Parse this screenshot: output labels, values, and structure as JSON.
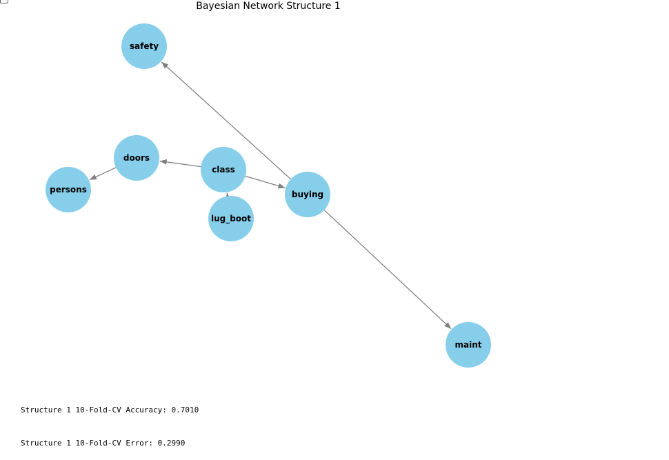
{
  "title": "Bayesian Network Structure 1",
  "colors": {
    "node_fill": "#87ceeb",
    "edge": "#808080",
    "label": "#000000"
  },
  "nodes": [
    {
      "id": "safety",
      "label": "safety"
    },
    {
      "id": "doors",
      "label": "doors"
    },
    {
      "id": "persons",
      "label": "persons"
    },
    {
      "id": "class",
      "label": "class"
    },
    {
      "id": "lug_boot",
      "label": "lug_boot"
    },
    {
      "id": "buying",
      "label": "buying"
    },
    {
      "id": "maint",
      "label": "maint"
    }
  ],
  "edges": [
    {
      "from": "buying",
      "to": "safety"
    },
    {
      "from": "class",
      "to": "doors"
    },
    {
      "from": "doors",
      "to": "persons"
    },
    {
      "from": "class",
      "to": "buying"
    },
    {
      "from": "lug_boot",
      "to": "class"
    },
    {
      "from": "buying",
      "to": "maint"
    }
  ],
  "output": {
    "accuracy_line": "Structure 1 10-Fold-CV Accuracy: 0.7010",
    "error_line": "Structure 1 10-Fold-CV Error: 0.2990"
  }
}
